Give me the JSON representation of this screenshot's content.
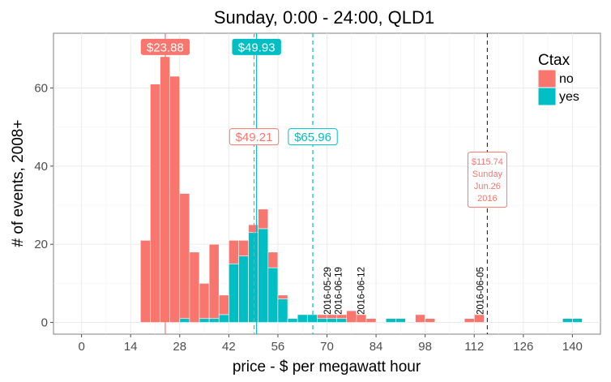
{
  "chart_data": {
    "type": "bar",
    "title": "Sunday, 0:00 - 24:00, QLD1",
    "xlabel": "price - $ per megawatt hour",
    "ylabel": "# of events, 2008+",
    "xlim": [
      -8,
      148
    ],
    "ylim": [
      -3,
      74
    ],
    "x_ticks": [
      0,
      14,
      28,
      42,
      56,
      70,
      84,
      98,
      112,
      126,
      140
    ],
    "y_ticks": [
      0,
      20,
      40,
      60
    ],
    "grid": true,
    "bin_width": 2.8,
    "legend": {
      "title": "Ctax",
      "position": "top-right",
      "entries": [
        {
          "label": "no",
          "color": "#F8766D"
        },
        {
          "label": "yes",
          "color": "#00BFC4"
        }
      ]
    },
    "series": [
      {
        "name": "no",
        "color": "#F8766D",
        "bins": [
          [
            18.2,
            21
          ],
          [
            21.0,
            61
          ],
          [
            23.8,
            68
          ],
          [
            26.6,
            63
          ],
          [
            29.4,
            32
          ],
          [
            32.2,
            18
          ],
          [
            35.0,
            9
          ],
          [
            37.8,
            19
          ],
          [
            40.6,
            5
          ],
          [
            43.4,
            6
          ],
          [
            46.2,
            4
          ],
          [
            49.0,
            2
          ],
          [
            51.8,
            5
          ],
          [
            54.6,
            4
          ],
          [
            57.4,
            1
          ],
          [
            68.6,
            1
          ],
          [
            71.4,
            1
          ],
          [
            74.2,
            1
          ],
          [
            77.0,
            3
          ],
          [
            79.8,
            2
          ],
          [
            82.6,
            1
          ],
          [
            96.6,
            2
          ],
          [
            99.4,
            1
          ],
          [
            110.6,
            1
          ],
          [
            113.4,
            2
          ]
        ]
      },
      {
        "name": "yes",
        "color": "#00BFC4",
        "bins": [
          [
            29.4,
            1
          ],
          [
            35.0,
            1
          ],
          [
            37.8,
            1
          ],
          [
            40.6,
            2
          ],
          [
            43.4,
            15
          ],
          [
            46.2,
            17
          ],
          [
            49.0,
            23
          ],
          [
            51.8,
            24
          ],
          [
            54.6,
            14
          ],
          [
            57.4,
            6
          ],
          [
            60.2,
            1
          ],
          [
            63.0,
            2
          ],
          [
            65.8,
            2
          ],
          [
            68.6,
            1
          ],
          [
            71.4,
            1
          ],
          [
            74.2,
            1
          ],
          [
            88.2,
            1
          ],
          [
            91.0,
            1
          ],
          [
            138.6,
            1
          ],
          [
            141.4,
            1
          ]
        ]
      }
    ],
    "vlines": [
      {
        "x": 23.88,
        "color": "#F8766D",
        "style": "solid"
      },
      {
        "x": 49.93,
        "color": "#00BFC4",
        "style": "solid"
      },
      {
        "x": 49.21,
        "color": "#F8766D",
        "style": "dashed"
      },
      {
        "x": 65.96,
        "color": "#00BFC4",
        "style": "dashed"
      },
      {
        "x": 115.74,
        "color": "#333333",
        "style": "dashed"
      }
    ],
    "annotations": [
      {
        "text": "$23.88",
        "x": 23.88,
        "y": 70.5,
        "style": "filled",
        "color": "#F8766D"
      },
      {
        "text": "$49.93",
        "x": 49.93,
        "y": 70.5,
        "style": "filled",
        "color": "#00BFC4"
      },
      {
        "text": "$49.21",
        "x": 49.21,
        "y": 47.5,
        "style": "outline",
        "color": "#F8766D"
      },
      {
        "text": "$65.96",
        "x": 65.96,
        "y": 47.5,
        "style": "outline",
        "color": "#00BFC4"
      },
      {
        "lines": [
          "$115.74",
          "Sunday",
          "Jun.26",
          "2016"
        ],
        "x": 115.74,
        "y": 36.5,
        "style": "outline-small",
        "color": "#F8766D"
      }
    ],
    "date_labels": [
      {
        "text": "2016-05-29",
        "x": 71.0,
        "y": 2.0
      },
      {
        "text": "2016-06-19",
        "x": 74.2,
        "y": 2.0
      },
      {
        "text": "2016-06-12",
        "x": 80.6,
        "y": 2.0
      },
      {
        "text": "2016-06-05",
        "x": 114.6,
        "y": 2.0
      }
    ]
  }
}
